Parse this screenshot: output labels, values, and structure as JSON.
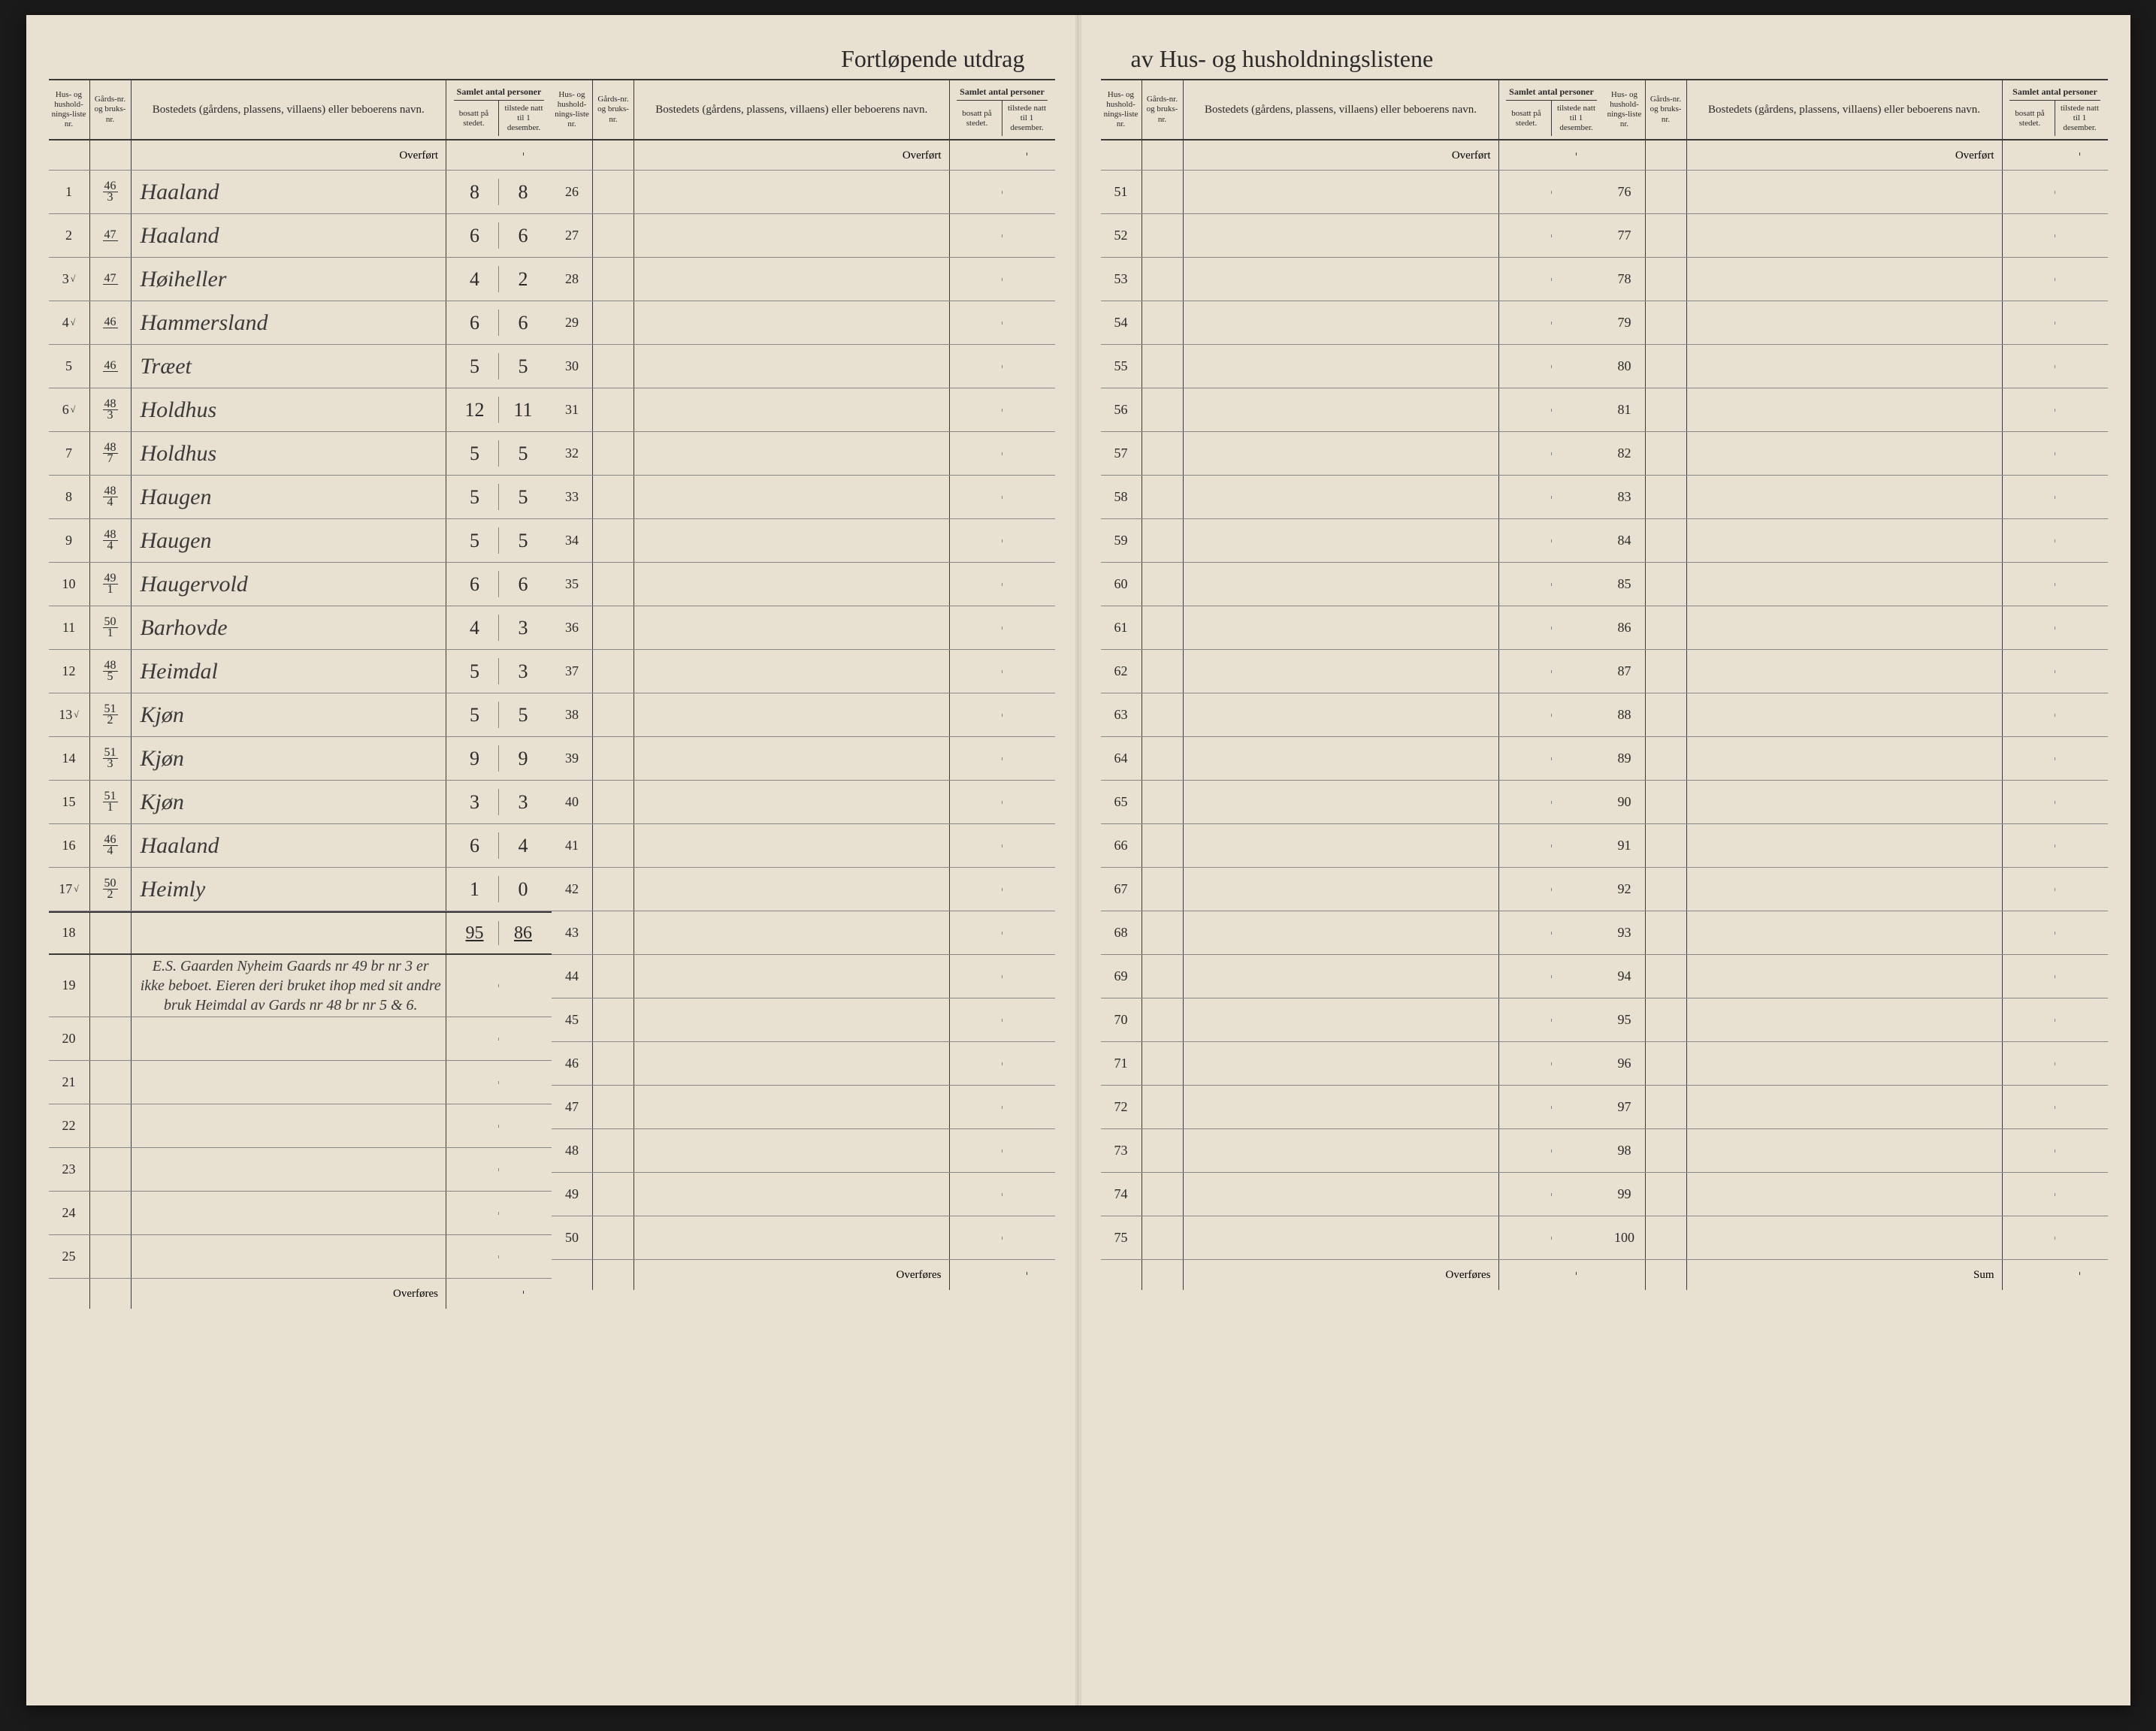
{
  "title_left": "Fortløpende utdrag",
  "title_right": "av Hus- og husholdningslistene",
  "headers": {
    "liste": "Hus- og hushold-nings-liste nr.",
    "gard": "Gårds-nr. og bruks-nr.",
    "name": "Bostedets (gårdens, plassens, villaens) eller beboerens navn.",
    "persons": "Samlet antal personer",
    "bosatt": "bosatt på stedet.",
    "tilstede": "tilstede natt til 1 desember."
  },
  "labels": {
    "overfort": "Overført",
    "overfores": "Overføres",
    "sum": "Sum"
  },
  "entries": [
    {
      "nr": "1",
      "chk": "",
      "gard_t": "46",
      "gard_b": "3",
      "name": "Haaland",
      "bosatt": "8",
      "tilstede": "8"
    },
    {
      "nr": "2",
      "chk": "",
      "gard_t": "47",
      "gard_b": "",
      "name": "Haaland",
      "bosatt": "6",
      "tilstede": "6"
    },
    {
      "nr": "3",
      "chk": "√",
      "gard_t": "47",
      "gard_b": "",
      "name": "Høiheller",
      "bosatt": "4",
      "tilstede": "2"
    },
    {
      "nr": "4",
      "chk": "√",
      "gard_t": "46",
      "gard_b": "",
      "name": "Hammersland",
      "bosatt": "6",
      "tilstede": "6"
    },
    {
      "nr": "5",
      "chk": "",
      "gard_t": "46",
      "gard_b": "",
      "name": "Træet",
      "bosatt": "5",
      "tilstede": "5"
    },
    {
      "nr": "6",
      "chk": "√",
      "gard_t": "48",
      "gard_b": "3",
      "name": "Holdhus",
      "bosatt": "12",
      "tilstede": "11"
    },
    {
      "nr": "7",
      "chk": "",
      "gard_t": "48",
      "gard_b": "7",
      "name": "Holdhus",
      "bosatt": "5",
      "tilstede": "5"
    },
    {
      "nr": "8",
      "chk": "",
      "gard_t": "48",
      "gard_b": "4",
      "name": "Haugen",
      "bosatt": "5",
      "tilstede": "5"
    },
    {
      "nr": "9",
      "chk": "",
      "gard_t": "48",
      "gard_b": "4",
      "name": "Haugen",
      "bosatt": "5",
      "tilstede": "5"
    },
    {
      "nr": "10",
      "chk": "",
      "gard_t": "49",
      "gard_b": "1",
      "name": "Haugervold",
      "bosatt": "6",
      "tilstede": "6"
    },
    {
      "nr": "11",
      "chk": "",
      "gard_t": "50",
      "gard_b": "1",
      "name": "Barhovde",
      "bosatt": "4",
      "tilstede": "3"
    },
    {
      "nr": "12",
      "chk": "",
      "gard_t": "48",
      "gard_b": "5",
      "name": "Heimdal",
      "bosatt": "5",
      "tilstede": "3"
    },
    {
      "nr": "13",
      "chk": "√",
      "gard_t": "51",
      "gard_b": "2",
      "name": "Kjøn",
      "bosatt": "5",
      "tilstede": "5"
    },
    {
      "nr": "14",
      "chk": "",
      "gard_t": "51",
      "gard_b": "3",
      "name": "Kjøn",
      "bosatt": "9",
      "tilstede": "9"
    },
    {
      "nr": "15",
      "chk": "",
      "gard_t": "51",
      "gard_b": "1",
      "name": "Kjøn",
      "bosatt": "3",
      "tilstede": "3"
    },
    {
      "nr": "16",
      "chk": "",
      "gard_t": "46",
      "gard_b": "4",
      "name": "Haaland",
      "bosatt": "6",
      "tilstede": "4"
    },
    {
      "nr": "17",
      "chk": "√",
      "gard_t": "50",
      "gard_b": "2",
      "name": "Heimly",
      "bosatt": "1",
      "tilstede": "0"
    }
  ],
  "sum": {
    "bosatt": "95",
    "tilstede": "86"
  },
  "note": "E.S. Gaarden Nyheim Gaards nr 49 br nr 3 er ikke beboet. Eieren deri bruket ihop med sit andre bruk Heimdal av Gards nr 48 br nr 5 & 6.",
  "ranges": {
    "left1": {
      "start": 1,
      "end": 25
    },
    "left2": {
      "start": 26,
      "end": 50
    },
    "right1": {
      "start": 51,
      "end": 75
    },
    "right2": {
      "start": 76,
      "end": 100
    }
  },
  "colors": {
    "paper": "#e8e0d0",
    "ink": "#2a2a2a",
    "rule": "#3a3a3a",
    "light_rule": "#888"
  }
}
